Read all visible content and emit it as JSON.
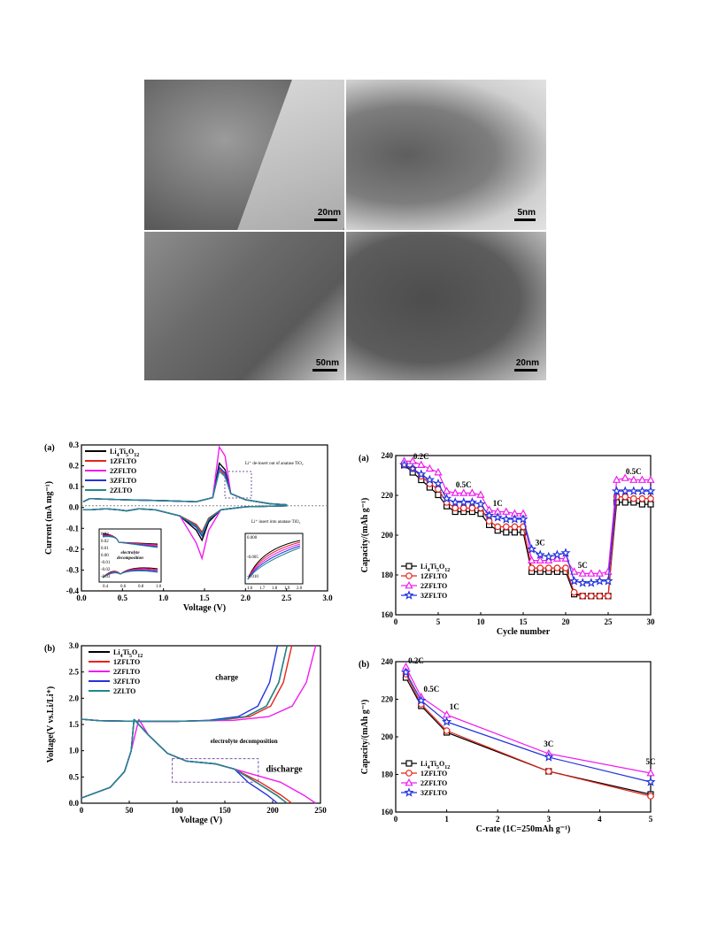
{
  "tem_panels": [
    {
      "scale": "20nm"
    },
    {
      "scale": "5nm"
    },
    {
      "scale": "50nm"
    },
    {
      "scale": "20nm"
    }
  ],
  "colors": {
    "black": "#000000",
    "red": "#e8231c",
    "magenta": "#f01cf0",
    "blue": "#2233dd",
    "teal": "#1e8a8a",
    "green": "#1a9a3a"
  },
  "chart_data": [
    {
      "id": "cv",
      "type": "line",
      "panel_label": "(a)",
      "xlabel": "Voltage (V)",
      "ylabel": "Current (mA mg⁻¹)",
      "xlim": [
        0,
        3.0
      ],
      "ylim": [
        -0.42,
        0.3
      ],
      "xticks": [
        "0.0",
        "0.5",
        "1.0",
        "1.5",
        "2.0",
        "2.5",
        "3.0"
      ],
      "yticks": [
        "-0.4",
        "-0.3",
        "-0.2",
        "-0.1",
        "0.0",
        "0.1",
        "0.2",
        "0.3"
      ],
      "legend": [
        "Li4Ti5O12",
        "1ZFLTO",
        "2ZFLTO",
        "3ZFLTO",
        "2ZLTO"
      ],
      "annotations": {
        "deinsert": "Li⁺ de-insert out of anatase TiO₂",
        "insert": "Li⁺ insert into anatase TiO₂",
        "electrolyte": "electrolyte decomposition"
      },
      "inset_left": {
        "yticks": [
          "0.03",
          "0.02",
          "0.01",
          "0.00",
          "-0.01",
          "-0.02",
          "-0.03"
        ],
        "xticks": [
          "0.4",
          "0.6",
          "0.8",
          "1.0"
        ]
      },
      "inset_right": {
        "yticks": [
          "0.000",
          "-0.005",
          "-0.010"
        ],
        "xticks": [
          "1.6",
          "1.7",
          "1.8",
          "1.9",
          "2.0"
        ]
      }
    },
    {
      "id": "charge",
      "type": "line",
      "panel_label": "(b)",
      "xlabel": "Voltage (V)",
      "ylabel": "Voltage(V vs.Li/Li⁺)",
      "xlim": [
        0,
        250
      ],
      "ylim": [
        0,
        3.0
      ],
      "xticks": [
        "0",
        "50",
        "100",
        "150",
        "200",
        "250"
      ],
      "yticks": [
        "0.0",
        "0.5",
        "1.0",
        "1.5",
        "2.0",
        "2.5",
        "3.0"
      ],
      "legend": [
        "Li4Ti5O12",
        "1ZFLTO",
        "2ZFLTO",
        "3ZFLTO",
        "2ZLTO"
      ],
      "annotations": {
        "charge": "charge",
        "discharge": "discharge",
        "electrolyte": "electrolyte decomposition"
      }
    },
    {
      "id": "cycle",
      "type": "line",
      "panel_label": "(a)",
      "xlabel": "Cycle number",
      "ylabel": "Capacity/(mAh g⁻¹)",
      "xlim": [
        0,
        30
      ],
      "ylim": [
        160,
        245
      ],
      "xticks": [
        "0",
        "5",
        "10",
        "15",
        "20",
        "25",
        "30"
      ],
      "yticks": [
        "160",
        "180",
        "200",
        "220",
        "240"
      ],
      "rate_labels": [
        "0.2C",
        "0.5C",
        "1C",
        "3C",
        "5C",
        "0.5C"
      ],
      "legend": [
        "Li4Ti5O12",
        "1ZFLTO",
        "2ZFLTO",
        "3ZFLTO"
      ],
      "series": [
        {
          "name": "Li4Ti5O12",
          "values": [
            240,
            236,
            232,
            228,
            224,
            218,
            215,
            215,
            215,
            214,
            208,
            205,
            204,
            204,
            204,
            183,
            183,
            183,
            183,
            183,
            171,
            170,
            170,
            170,
            170,
            220,
            220,
            220,
            219,
            219
          ]
        },
        {
          "name": "1ZFLTO",
          "values": [
            240,
            238,
            234,
            230,
            227,
            220,
            217,
            217,
            217,
            217,
            210,
            207,
            207,
            207,
            207,
            185,
            185,
            185,
            185,
            185,
            172,
            170,
            170,
            170,
            170,
            223,
            223,
            222,
            222,
            222
          ]
        },
        {
          "name": "2ZFLTO",
          "values": [
            242,
            242,
            240,
            238,
            236,
            226,
            225,
            225,
            225,
            224,
            216,
            215,
            215,
            214,
            214,
            189,
            189,
            189,
            190,
            190,
            183,
            182,
            182,
            182,
            183,
            232,
            233,
            232,
            232,
            232
          ]
        },
        {
          "name": "3ZFLTO",
          "values": [
            240,
            238,
            235,
            232,
            230,
            222,
            220,
            220,
            220,
            219,
            213,
            212,
            211,
            211,
            211,
            195,
            192,
            191,
            192,
            193,
            178,
            177,
            177,
            178,
            178,
            226,
            226,
            226,
            226,
            226
          ]
        }
      ]
    },
    {
      "id": "rate",
      "type": "line",
      "panel_label": "(b)",
      "xlabel": "C-rate (1C=250mAh g⁻¹)",
      "ylabel": "Capacity/(mAh g⁻¹)",
      "xlim": [
        0,
        5
      ],
      "ylim": [
        160,
        245
      ],
      "xticks": [
        "0",
        "1",
        "2",
        "3",
        "4",
        "5"
      ],
      "yticks": [
        "160",
        "180",
        "200",
        "220",
        "240"
      ],
      "rate_labels": [
        "0.2C",
        "0.5C",
        "1C",
        "3C",
        "5C"
      ],
      "legend": [
        "Li4Ti5O12",
        "1ZFLTO",
        "2ZFLTO",
        "3ZFLTO"
      ],
      "x": [
        0.2,
        0.5,
        1,
        3,
        5
      ],
      "series": [
        {
          "name": "Li4Ti5O12",
          "values": [
            236,
            220,
            205,
            183,
            170
          ]
        },
        {
          "name": "1ZFLTO",
          "values": [
            238,
            221,
            206,
            183,
            169
          ]
        },
        {
          "name": "2ZFLTO",
          "values": [
            242,
            225,
            215,
            193,
            182
          ]
        },
        {
          "name": "3ZFLTO",
          "values": [
            239,
            223,
            211,
            191,
            177
          ]
        }
      ]
    }
  ]
}
